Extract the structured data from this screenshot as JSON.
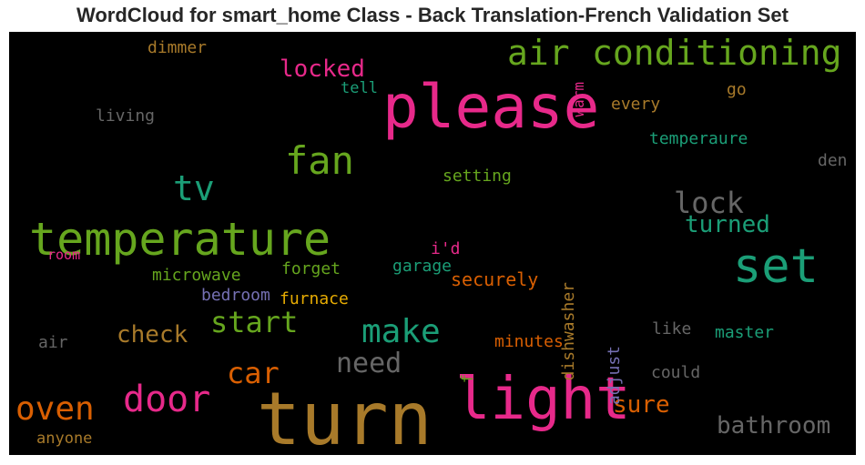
{
  "chart_data": {
    "type": "wordcloud",
    "title": "WordCloud for smart_home Class - Back Translation-French Validation Set",
    "background": "#000000",
    "words": [
      {
        "text": "turn",
        "color": "#a87a2a"
      },
      {
        "text": "light",
        "color": "#e7298a"
      },
      {
        "text": "please",
        "color": "#e7298a"
      },
      {
        "text": "set",
        "color": "#1b9e77"
      },
      {
        "text": "temperature",
        "color": "#66a61e"
      },
      {
        "text": "air",
        "color": "#66a61e"
      },
      {
        "text": "conditioning",
        "color": "#66a61e"
      },
      {
        "text": "fan",
        "color": "#66a61e"
      },
      {
        "text": "door",
        "color": "#e7298a"
      },
      {
        "text": "tv",
        "color": "#1b9e77"
      },
      {
        "text": "oven",
        "color": "#d95f02"
      },
      {
        "text": "make",
        "color": "#1b9e77"
      },
      {
        "text": "lock",
        "color": "#666666"
      },
      {
        "text": "start",
        "color": "#66a61e"
      },
      {
        "text": "car",
        "color": "#d95f02"
      },
      {
        "text": "need",
        "color": "#666666"
      },
      {
        "text": "bathroom",
        "color": "#666666"
      },
      {
        "text": "sure",
        "color": "#d95f02"
      },
      {
        "text": "turned",
        "color": "#1b9e77"
      },
      {
        "text": "locked",
        "color": "#e7298a"
      },
      {
        "text": "check",
        "color": "#a87a2a"
      },
      {
        "text": "dishwasher",
        "color": "#a87a2a"
      },
      {
        "text": "adjust",
        "color": "#7570b3"
      },
      {
        "text": "securely",
        "color": "#d95f02"
      },
      {
        "text": "microwave",
        "color": "#66a61e"
      },
      {
        "text": "forget",
        "color": "#66a61e"
      },
      {
        "text": "garage",
        "color": "#1b9e77"
      },
      {
        "text": "temperaure",
        "color": "#1b9e77"
      },
      {
        "text": "setting",
        "color": "#66a61e"
      },
      {
        "text": "every",
        "color": "#a87a2a"
      },
      {
        "text": "bedroom",
        "color": "#7570b3"
      },
      {
        "text": "furnace",
        "color": "#e6ab02"
      },
      {
        "text": "minutes",
        "color": "#d95f02"
      },
      {
        "text": "master",
        "color": "#1b9e77"
      },
      {
        "text": "could",
        "color": "#666666"
      },
      {
        "text": "like",
        "color": "#666666"
      },
      {
        "text": "living",
        "color": "#666666"
      },
      {
        "text": "dimmer",
        "color": "#a87a2a"
      },
      {
        "text": "tell",
        "color": "#1b9e77"
      },
      {
        "text": "go",
        "color": "#a87a2a"
      },
      {
        "text": "warm",
        "color": "#e7298a"
      },
      {
        "text": "i'd",
        "color": "#e7298a"
      },
      {
        "text": "room",
        "color": "#e7298a"
      },
      {
        "text": "den",
        "color": "#666666"
      },
      {
        "text": "air",
        "color": "#666666"
      },
      {
        "text": "anyone",
        "color": "#a87a2a"
      },
      {
        "text": "f",
        "color": "#66a61e"
      }
    ]
  }
}
